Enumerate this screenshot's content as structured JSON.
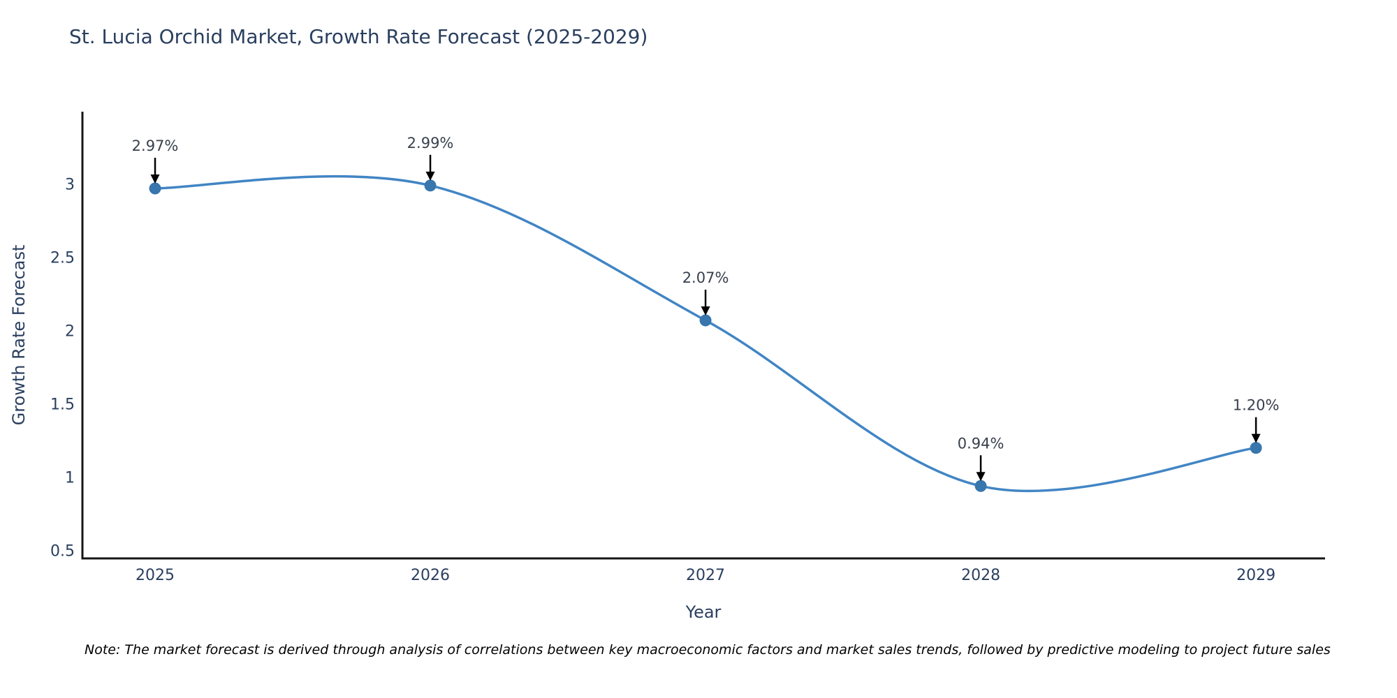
{
  "header": {
    "title": "St. Lucia Orchid Market, Growth Rate Forecast (2025-2029)"
  },
  "chart_data": {
    "type": "line",
    "line_shape": "spline",
    "title": "St. Lucia Orchid Market, Growth Rate Forecast (2025-2029)",
    "xlabel": "Year",
    "ylabel": "Growth Rate Forecast",
    "x": [
      2025,
      2026,
      2027,
      2028,
      2029
    ],
    "values": [
      2.97,
      2.99,
      2.07,
      0.94,
      1.2
    ],
    "point_labels": [
      "2.97%",
      "2.99%",
      "2.07%",
      "0.94%",
      "1.20%"
    ],
    "x_tick_values": [
      2025,
      2026,
      2027,
      2028,
      2029
    ],
    "x_tick_labels": [
      "2025",
      "2026",
      "2027",
      "2028",
      "2029"
    ],
    "y_tick_values": [
      0.5,
      1,
      1.5,
      2,
      2.5,
      3
    ],
    "y_tick_labels": [
      "0.5",
      "1",
      "1.5",
      "2",
      "2.5",
      "3"
    ],
    "xlim": [
      2024.736,
      2029.251
    ],
    "ylim": [
      0.446,
      3.494
    ],
    "grid": false,
    "legend_position": "none",
    "markers": true,
    "colors": {
      "line": "#4185c4",
      "marker": "#3876ad",
      "axis": "#161616",
      "arrow": "#000000",
      "text": "#2a3f5f",
      "annotation_text": "#38404c",
      "background": "#ffffff"
    }
  },
  "footer": {
    "note": "Note: The market forecast is derived through analysis of correlations between key macroeconomic factors and market sales trends, followed by predictive modeling to project future sales"
  }
}
